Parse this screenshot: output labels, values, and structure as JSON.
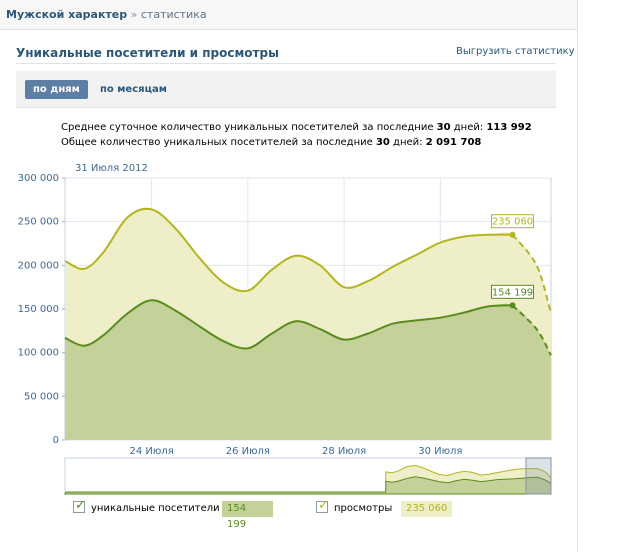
{
  "breadcrumb": {
    "group": "Мужской характер",
    "sep": "»",
    "current": "статистика"
  },
  "panel": {
    "title": "Уникальные посетители и просмотры",
    "export_label": "Выгрузить статистику"
  },
  "tabs": {
    "by_day": "по дням",
    "by_month": "по месяцам"
  },
  "stats": {
    "line1_prefix": "Среднее суточное количество уникальных посетителей за последние ",
    "line1_days": "30",
    "line1_mid": " дней: ",
    "line1_value": "113 992",
    "line2_prefix": "Общее количество уникальных посетителей за последние ",
    "line2_days": "30",
    "line2_mid": " дней: ",
    "line2_value": "2 091 708"
  },
  "hover_date": "31 Июля 2012",
  "colors": {
    "views_line": "#b5b51c",
    "views_fill": "#eeeec9",
    "unique_line": "#5a8c1c",
    "unique_fill": "#c4d29a",
    "grid": "#e0e6ee",
    "axis_text": "#3b6a9a"
  },
  "chart_data": {
    "type": "area",
    "x": [
      22.2,
      22.6,
      23.0,
      23.5,
      24.0,
      24.5,
      25.0,
      25.5,
      26.0,
      26.5,
      27.0,
      27.5,
      28.0,
      28.5,
      29.0,
      29.5,
      30.0,
      30.5,
      31.0,
      31.5,
      32.0,
      32.3
    ],
    "x_ticks": [
      24,
      26,
      28,
      30
    ],
    "x_tick_labels": [
      "24 Июля",
      "26 Июля",
      "28 Июля",
      "30 Июля"
    ],
    "ylim": [
      0,
      300000
    ],
    "y_ticks": [
      0,
      50000,
      100000,
      150000,
      200000,
      250000,
      300000
    ],
    "y_tick_labels": [
      "0",
      "50 000",
      "100 000",
      "150 000",
      "200 000",
      "250 000",
      "300 000"
    ],
    "dashed_from_x": 31.5,
    "grid": true,
    "series": [
      {
        "name": "просмотры",
        "values": [
          205000,
          196000,
          215000,
          255000,
          264000,
          242000,
          208000,
          180000,
          171000,
          195000,
          211000,
          200000,
          175000,
          182000,
          198000,
          212000,
          226000,
          233000,
          235000,
          235060,
          200000,
          145000
        ],
        "marker_value": "235 060",
        "legend_value": "235 060"
      },
      {
        "name": "уникальные посетители",
        "values": [
          117000,
          108000,
          120000,
          145000,
          160000,
          148000,
          130000,
          113000,
          105000,
          122000,
          136000,
          127000,
          115000,
          122000,
          133000,
          137000,
          140000,
          146000,
          153000,
          154199,
          127000,
          97000
        ],
        "marker_value": "154 199",
        "legend_value": "154 199"
      }
    ]
  }
}
